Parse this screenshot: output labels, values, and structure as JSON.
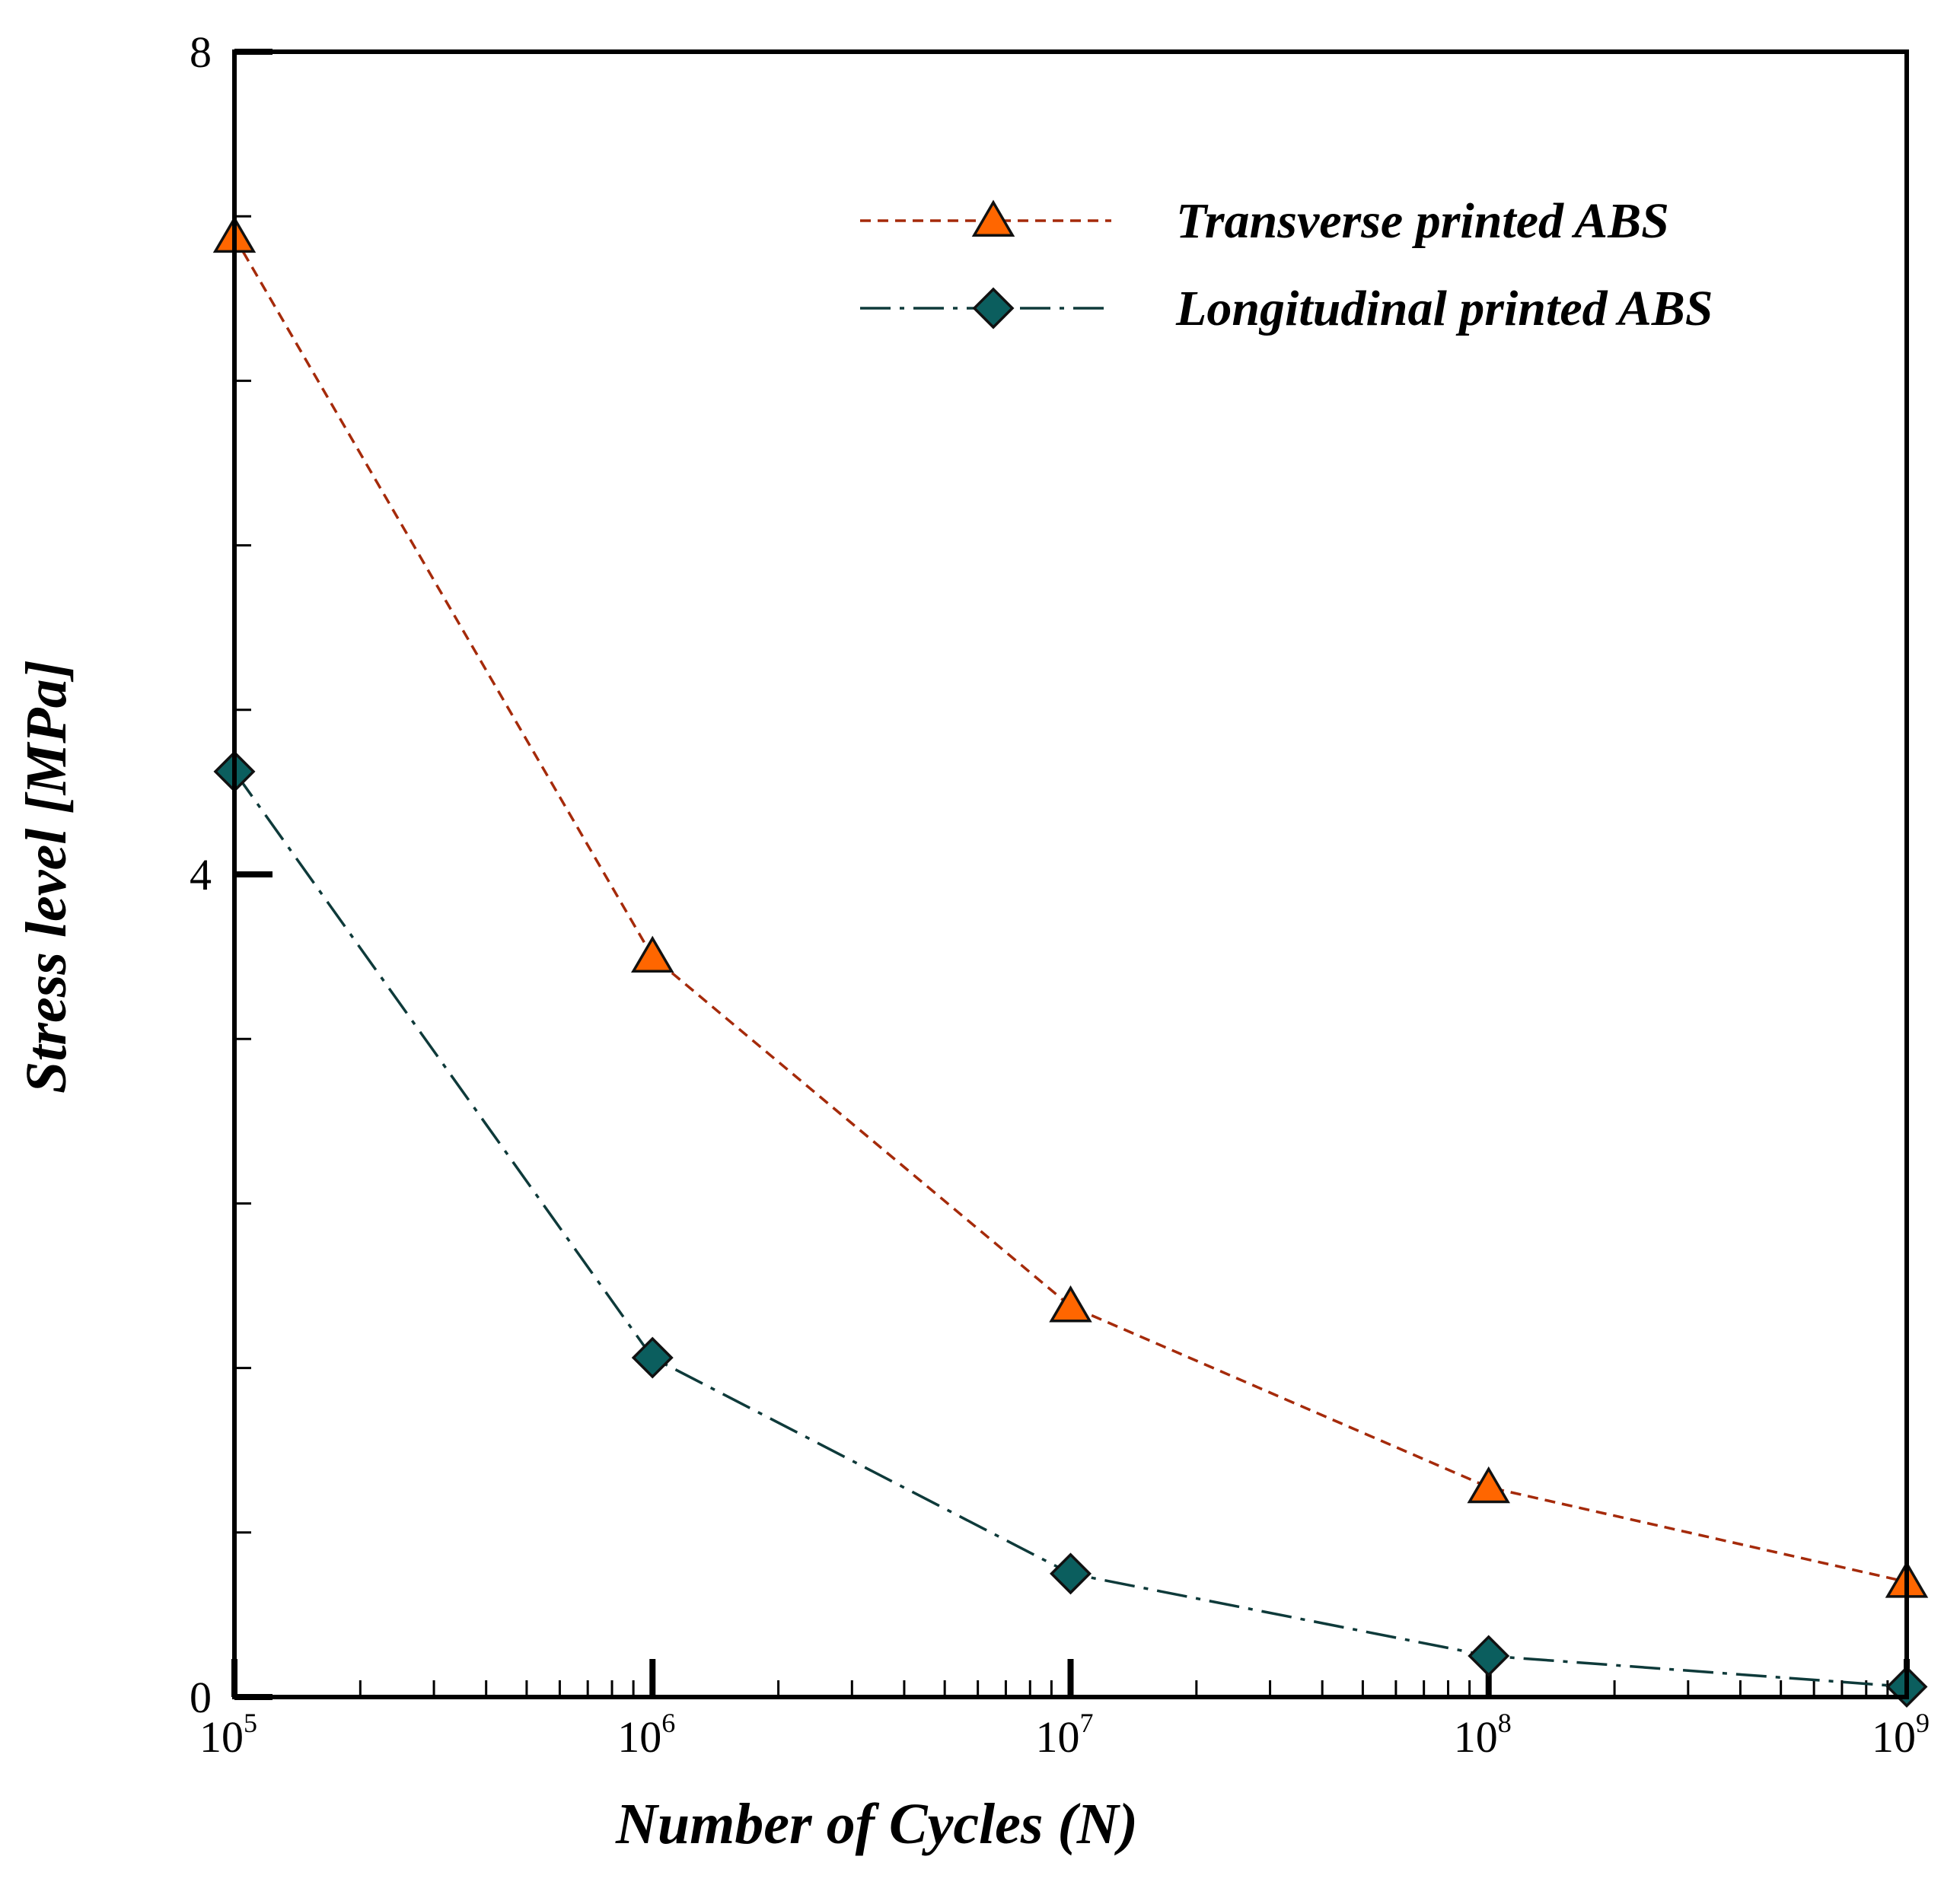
{
  "chart_data": {
    "type": "line",
    "title": "",
    "xlabel": "Number of Cycles (N)",
    "ylabel": "Stress level [MPa]",
    "xscale": "log",
    "xlim": [
      100000,
      1000000000
    ],
    "ylim": [
      0,
      8
    ],
    "x_ticks": [
      {
        "base": "10",
        "exp": "5",
        "value": 100000
      },
      {
        "base": "10",
        "exp": "6",
        "value": 1000000
      },
      {
        "base": "10",
        "exp": "7",
        "value": 10000000
      },
      {
        "base": "10",
        "exp": "8",
        "value": 100000000
      },
      {
        "base": "10",
        "exp": "9",
        "value": 1000000000
      }
    ],
    "y_ticks": [
      {
        "label": "0",
        "value": 0
      },
      {
        "label": "4",
        "value": 4
      },
      {
        "label": "8",
        "value": 8
      }
    ],
    "y_minor_step": 0.8,
    "grid": false,
    "legend_position": "top-right",
    "x": [
      100000,
      1000000,
      10000000,
      100000000,
      1000000000
    ],
    "series": [
      {
        "name": "Transverse printed ABS",
        "values": [
          7.1,
          3.6,
          1.9,
          1.02,
          0.56
        ],
        "color": "#ff6600",
        "line_color": "#a52a0a",
        "line_style": "dashed",
        "marker": "triangle"
      },
      {
        "name": "Longitudinal printed ABS",
        "values": [
          4.5,
          1.65,
          0.6,
          0.2,
          0.05
        ],
        "color": "#0b5e5e",
        "line_color": "#0e3a3a",
        "line_style": "dashdot",
        "marker": "diamond"
      }
    ]
  }
}
